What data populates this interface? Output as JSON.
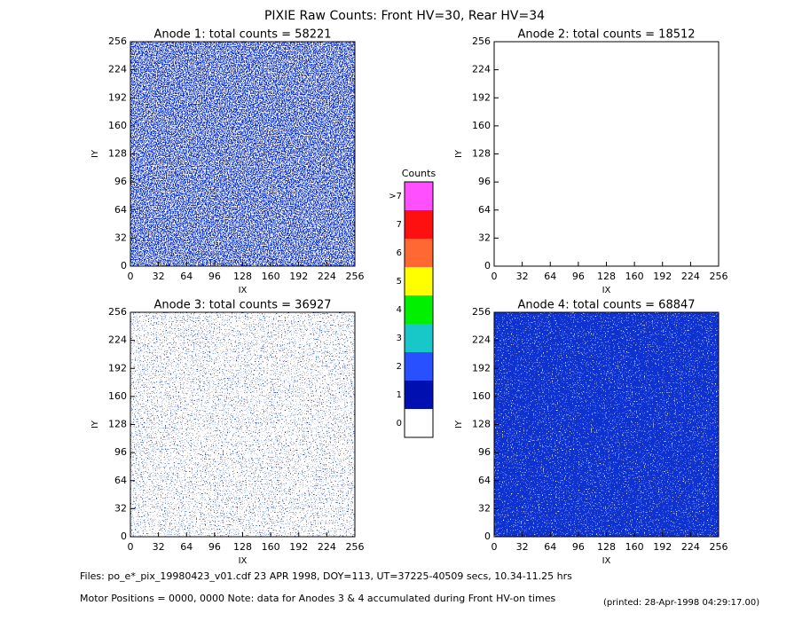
{
  "title": "PIXIE Raw Counts:  Front HV=30, Rear HV=34",
  "chart_data": [
    {
      "type": "heatmap",
      "title": "Anode 1: total counts = 58221",
      "xlabel": "IX",
      "ylabel": "IY",
      "xlim": [
        0,
        256
      ],
      "ylim": [
        0,
        256
      ],
      "xticks": [
        0,
        32,
        64,
        96,
        128,
        160,
        192,
        224,
        256
      ],
      "yticks": [
        0,
        32,
        64,
        96,
        128,
        160,
        192,
        224,
        256
      ]
    },
    {
      "type": "heatmap",
      "title": "Anode 2: total counts = 18512",
      "xlabel": "IX",
      "ylabel": "IY",
      "xlim": [
        0,
        256
      ],
      "ylim": [
        0,
        256
      ],
      "xticks": [
        0,
        32,
        64,
        96,
        128,
        160,
        192,
        224,
        256
      ],
      "yticks": [
        0,
        32,
        64,
        96,
        128,
        160,
        192,
        224,
        256
      ]
    },
    {
      "type": "heatmap",
      "title": "Anode 3: total counts = 36927",
      "xlabel": "IX",
      "ylabel": "IY",
      "xlim": [
        0,
        256
      ],
      "ylim": [
        0,
        256
      ],
      "xticks": [
        0,
        32,
        64,
        96,
        128,
        160,
        192,
        224,
        256
      ],
      "yticks": [
        0,
        32,
        64,
        96,
        128,
        160,
        192,
        224,
        256
      ]
    },
    {
      "type": "heatmap",
      "title": "Anode 4: total counts = 68847",
      "xlabel": "IX",
      "ylabel": "IY",
      "xlim": [
        0,
        256
      ],
      "ylim": [
        0,
        256
      ],
      "xticks": [
        0,
        32,
        64,
        96,
        128,
        160,
        192,
        224,
        256
      ],
      "yticks": [
        0,
        32,
        64,
        96,
        128,
        160,
        192,
        224,
        256
      ]
    }
  ],
  "colorbar": {
    "title": "Counts",
    "ticks": [
      0,
      1,
      2,
      3,
      4,
      5,
      6,
      7,
      {
        "value": 8,
        "label": ">7"
      }
    ],
    "colors": [
      "#ffffff",
      "#0010b0",
      "#2850ff",
      "#18c8c8",
      "#00f000",
      "#ffff00",
      "#ff6830",
      "#ff1010",
      "#ff50ff"
    ]
  },
  "footer": {
    "files": "Files: po_e*_pix_19980423_v01.cdf    23 APR 1998, DOY=113, UT=37225-40509 secs, 10.34-11.25 hrs",
    "motor": "Motor Positions = 0000, 0000    Note: data for Anodes 3 & 4 accumulated during Front HV-on times",
    "printed": "(printed: 28-Apr-1998 04:29:17.00)"
  }
}
